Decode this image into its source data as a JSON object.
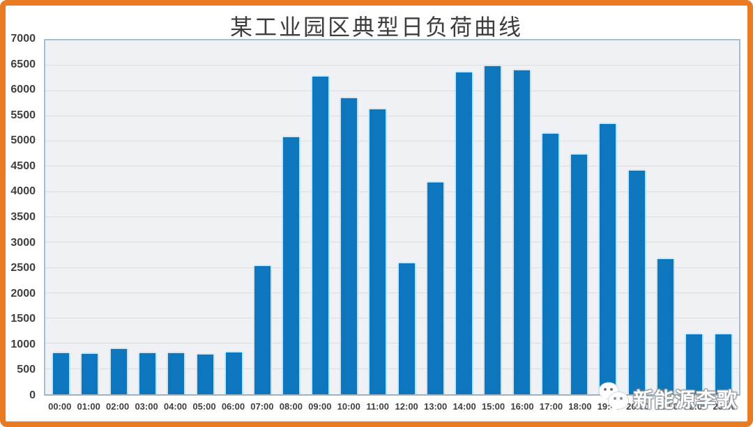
{
  "frame": {
    "border_color": "#e87b22",
    "background": "#ffffff"
  },
  "chart_data": {
    "type": "bar",
    "title": "某工业园区典型日负荷曲线",
    "categories": [
      "00:00",
      "01:00",
      "02:00",
      "03:00",
      "04:00",
      "05:00",
      "06:00",
      "07:00",
      "08:00",
      "09:00",
      "10:00",
      "11:00",
      "12:00",
      "13:00",
      "14:00",
      "15:00",
      "16:00",
      "17:00",
      "18:00",
      "19:00",
      "20:00",
      "21:00",
      "22:00",
      "23:00"
    ],
    "values": [
      820,
      800,
      900,
      820,
      820,
      780,
      830,
      2540,
      5090,
      6280,
      5850,
      5630,
      2590,
      4190,
      6360,
      6490,
      6410,
      5160,
      4740,
      5340,
      4430,
      2670,
      1180,
      1180
    ],
    "xlabel": "",
    "ylabel": "",
    "ylim": [
      0,
      7000
    ],
    "yticks": [
      0,
      500,
      1000,
      1500,
      2000,
      2500,
      3000,
      3500,
      4000,
      4500,
      5000,
      5500,
      6000,
      6500,
      7000
    ],
    "grid": true,
    "legend": false,
    "bar_color": "#0e76bc",
    "bar_edge_color": "#b0e0f6",
    "plot_background": "#f0f1f4",
    "plot_border_color": "#a4bcd4",
    "gridline_color": "#dcdce1",
    "tick_label_color": "#3f3f3f",
    "title_color": "#3d3d3d"
  },
  "watermark": {
    "label": "新能源李歌",
    "icon": "wechat-icon",
    "text_color": "#ffffff"
  }
}
